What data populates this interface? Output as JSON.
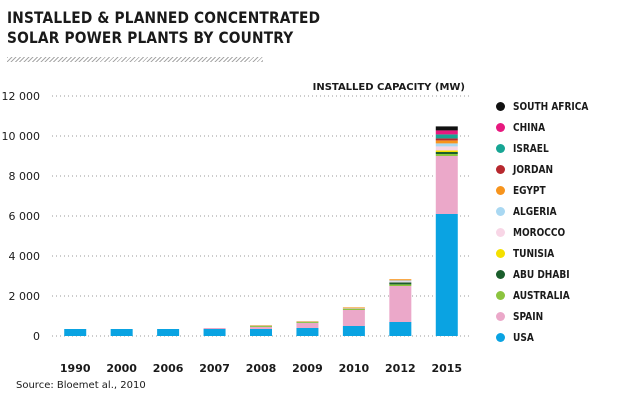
{
  "title_lines": [
    "INSTALLED & PLANNED CONCENTRATED",
    "SOLAR POWER PLANTS BY COUNTRY"
  ],
  "source": "Source: Bloemet al., 2010",
  "chart_data": {
    "type": "bar",
    "stacked": true,
    "categories": [
      "1990",
      "2000",
      "2006",
      "2007",
      "2008",
      "2009",
      "2010",
      "2012",
      "2015"
    ],
    "ylabel": "INSTALLED CAPACITY (MW)",
    "ylim": [
      0,
      12000
    ],
    "yticks": [
      "0",
      "2 000",
      "4 000",
      "6 000",
      "8 000",
      "10 000",
      "12 000"
    ],
    "grid": "dotted horizontal",
    "legend_position": "right",
    "series": [
      {
        "name": "USA",
        "color": "#0aa3e2",
        "values": [
          350,
          350,
          350,
          350,
          350,
          400,
          500,
          700,
          6100
        ]
      },
      {
        "name": "SPAIN",
        "color": "#eba8c9",
        "values": [
          0,
          0,
          0,
          50,
          100,
          250,
          800,
          1800,
          2900
        ]
      },
      {
        "name": "AUSTRALIA",
        "color": "#8cc43f",
        "values": [
          0,
          0,
          0,
          0,
          50,
          50,
          50,
          80,
          100
        ]
      },
      {
        "name": "ABU DHABI",
        "color": "#1a5e2c",
        "values": [
          0,
          0,
          0,
          0,
          0,
          0,
          0,
          100,
          100
        ]
      },
      {
        "name": "TUNISIA",
        "color": "#f4e000",
        "values": [
          0,
          0,
          0,
          0,
          0,
          0,
          0,
          0,
          80
        ]
      },
      {
        "name": "MOROCCO",
        "color": "#f8d6e6",
        "values": [
          0,
          0,
          0,
          0,
          0,
          0,
          0,
          50,
          200
        ]
      },
      {
        "name": "ALGERIA",
        "color": "#a9d8f2",
        "values": [
          0,
          0,
          0,
          0,
          20,
          20,
          30,
          50,
          150
        ]
      },
      {
        "name": "EGYPT",
        "color": "#f7941d",
        "values": [
          0,
          0,
          0,
          0,
          20,
          20,
          50,
          60,
          150
        ]
      },
      {
        "name": "JORDAN",
        "color": "#b7282e",
        "values": [
          0,
          0,
          0,
          0,
          0,
          0,
          0,
          0,
          100
        ]
      },
      {
        "name": "ISRAEL",
        "color": "#17a594",
        "values": [
          0,
          0,
          0,
          0,
          0,
          0,
          0,
          0,
          200
        ]
      },
      {
        "name": "CHINA",
        "color": "#e7197f",
        "values": [
          0,
          0,
          0,
          0,
          0,
          0,
          0,
          0,
          200
        ]
      },
      {
        "name": "SOUTH AFRICA",
        "color": "#111111",
        "values": [
          0,
          0,
          0,
          0,
          0,
          0,
          0,
          0,
          200
        ]
      }
    ]
  }
}
